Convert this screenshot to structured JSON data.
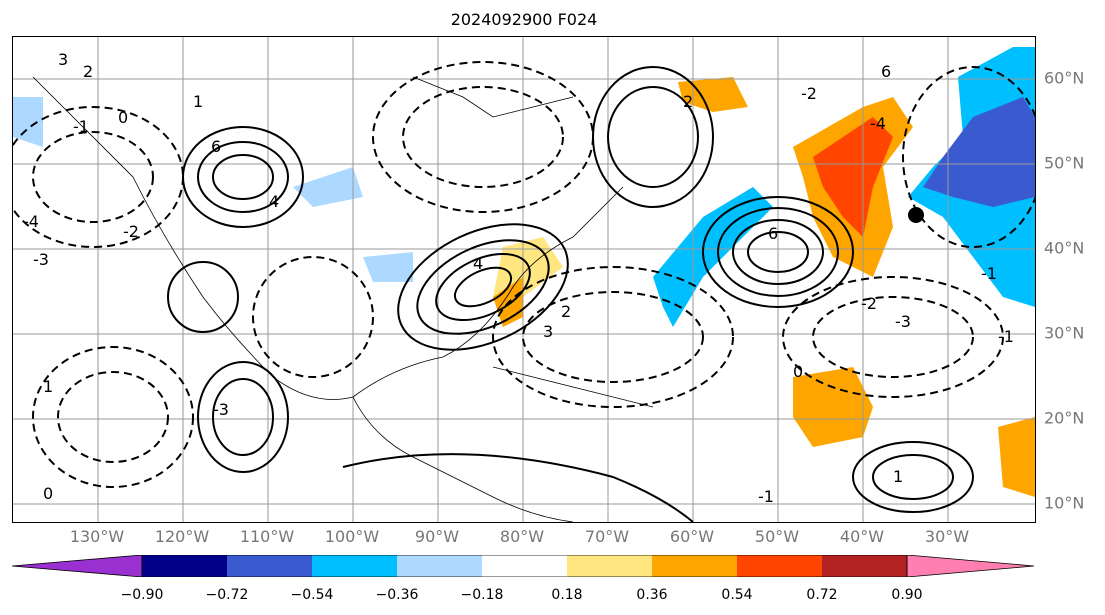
{
  "title": "2024092900 F024",
  "map": {
    "lon_labels": [
      "130°W",
      "120°W",
      "110°W",
      "100°W",
      "90°W",
      "80°W",
      "70°W",
      "60°W",
      "50°W",
      "40°W",
      "30°W"
    ],
    "lat_labels": [
      "60°N",
      "50°N",
      "40°N",
      "30°N",
      "20°N",
      "10°N"
    ],
    "contour_labels": [
      "3",
      "2",
      "6",
      "4",
      "0",
      "1",
      "-1",
      "-4",
      "-3",
      "-2",
      "4",
      "3",
      "2",
      "6",
      "-4",
      "6",
      "-3",
      "-1",
      "-2",
      "-1",
      "0",
      "1",
      "2",
      "-2",
      "1",
      "-3",
      "0",
      "-1"
    ],
    "marker": "filled-circle"
  },
  "colorbar": {
    "ticks": [
      "−0.90",
      "−0.72",
      "−0.54",
      "−0.36",
      "−0.18",
      "0.18",
      "0.36",
      "0.54",
      "0.72",
      "0.90"
    ],
    "colors": [
      "#9b30d0",
      "#00008b",
      "#3a5bd0",
      "#00bfff",
      "#add8ff",
      "#ffffff",
      "#ffe680",
      "#ffa500",
      "#ff4500",
      "#b22222",
      "#ff80b0"
    ]
  }
}
